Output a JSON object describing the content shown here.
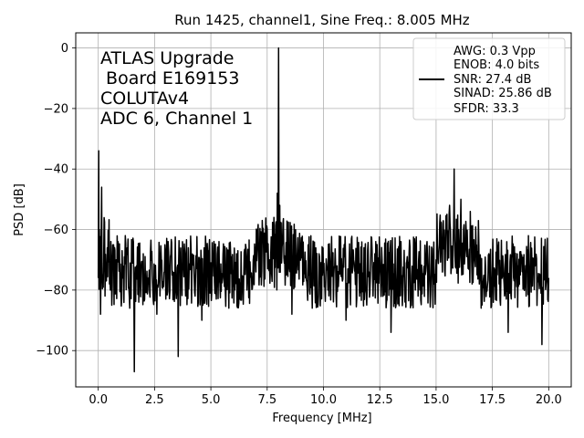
{
  "chart_data": {
    "type": "line",
    "title": "Run 1425, channel1, Sine Freq.: 8.005 MHz",
    "xlabel": "Frequency [MHz]",
    "ylabel": "PSD [dB]",
    "xlim": [
      -1.0,
      21.0
    ],
    "ylim": [
      -112,
      5
    ],
    "xticks": [
      "0.0",
      "2.5",
      "5.0",
      "7.5",
      "10.0",
      "12.5",
      "15.0",
      "17.5",
      "20.0"
    ],
    "xtick_values": [
      0,
      2.5,
      5,
      7.5,
      10,
      12.5,
      15,
      17.5,
      20
    ],
    "yticks": [
      "0",
      "−20",
      "−40",
      "−60",
      "−80",
      "−100"
    ],
    "ytick_values": [
      0,
      -20,
      -40,
      -60,
      -80,
      -100
    ],
    "grid": true,
    "legend_position": "top-right",
    "annotation_lines": [
      "ATLAS Upgrade",
      " Board E169153",
      "COLUTAv4",
      "ADC 6, Channel 1"
    ],
    "legend_lines": [
      "AWG: 0.3 Vpp",
      "ENOB: 4.0 bits",
      "SNR: 27.4 dB",
      "SINAD: 25.86 dB",
      "SFDR: 33.3"
    ],
    "series": [
      {
        "color": "#000000",
        "x": [
          0.0,
          0.02,
          0.05,
          0.1,
          0.15,
          0.2,
          0.3,
          0.4,
          0.5,
          0.6,
          0.8,
          1.0,
          1.2,
          1.4,
          1.6,
          1.7,
          1.8,
          2.0,
          2.2,
          2.4,
          2.6,
          2.8,
          3.0,
          3.2,
          3.4,
          3.55,
          3.7,
          4.0,
          4.3,
          4.6,
          5.0,
          5.4,
          5.8,
          6.2,
          6.6,
          7.0,
          7.3,
          7.6,
          7.8,
          7.95,
          8.005,
          8.06,
          8.2,
          8.4,
          8.6,
          8.9,
          9.2,
          9.5,
          9.8,
          10.2,
          10.6,
          11.0,
          11.4,
          11.8,
          12.2,
          12.6,
          13.0,
          13.4,
          13.8,
          14.2,
          14.6,
          15.0,
          15.3,
          15.6,
          15.8,
          16.0,
          16.1,
          16.3,
          16.6,
          17.0,
          17.4,
          17.8,
          18.2,
          18.6,
          19.0,
          19.4,
          19.7,
          20.0
        ],
        "y": [
          -76,
          -34,
          -60,
          -88,
          -46,
          -75,
          -82,
          -66,
          -78,
          -85,
          -70,
          -80,
          -62,
          -86,
          -107,
          -72,
          -84,
          -68,
          -80,
          -75,
          -88,
          -70,
          -83,
          -69,
          -79,
          -102,
          -74,
          -66,
          -82,
          -90,
          -71,
          -78,
          -86,
          -67,
          -80,
          -74,
          -62,
          -70,
          -56,
          -48,
          0,
          -52,
          -58,
          -66,
          -88,
          -72,
          -76,
          -86,
          -68,
          -80,
          -72,
          -90,
          -74,
          -66,
          -82,
          -70,
          -94,
          -76,
          -68,
          -82,
          -64,
          -70,
          -58,
          -52,
          -40,
          -60,
          -50,
          -66,
          -78,
          -86,
          -70,
          -78,
          -94,
          -68,
          -82,
          -72,
          -98,
          -76
        ]
      }
    ]
  }
}
